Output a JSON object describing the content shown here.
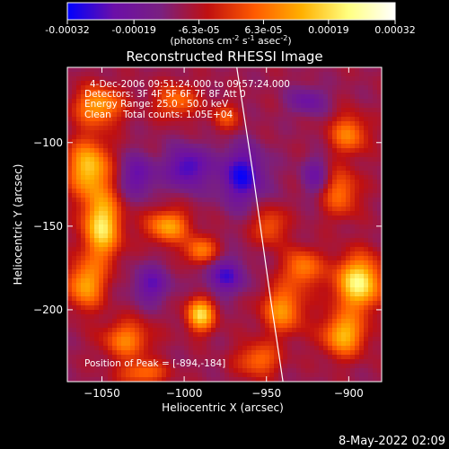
{
  "colorbar": {
    "tick_labels": [
      "-0.00032",
      "-0.00019",
      "-6.3e-05",
      "6.3e-05",
      "0.00019",
      "0.00032"
    ],
    "tick_values": [
      -0.00032,
      -0.00019,
      -6.3e-05,
      6.3e-05,
      0.00019,
      0.00032
    ],
    "range": [
      -0.00032,
      0.00032
    ],
    "unit_label": "(photons cm-2 s-1 asec-2)",
    "unit_base": "(photons cm",
    "unit_exp1": "-2",
    "unit_mid1": " s",
    "unit_exp2": "-1",
    "unit_mid2": " asec",
    "unit_exp3": "-2",
    "unit_end": ")",
    "colors": [
      "#0000ff",
      "#6b0fa8",
      "#7a2080",
      "#c01010",
      "#ff5a00",
      "#ffb000",
      "#ffff80",
      "#ffffff"
    ]
  },
  "chart_data": {
    "type": "heatmap",
    "title": "Reconstructed RHESSI Image",
    "xlabel": "Heliocentric X (arcsec)",
    "ylabel": "Heliocentric Y (arcsec)",
    "xlim": [
      -1071,
      -880
    ],
    "ylim": [
      -243,
      -55
    ],
    "x_ticks": [
      -1050,
      -1000,
      -950,
      -900
    ],
    "x_tick_labels": [
      "−1050",
      "−1000",
      "−950",
      "−900"
    ],
    "y_ticks": [
      -100,
      -150,
      -200
    ],
    "y_tick_labels": [
      "−100",
      "−150",
      "−200"
    ],
    "info_lines": [
      "4-Dec-2006 09:51:24.000 to 09:57:24.000",
      "Detectors: 3F 4F 5F 6F 7F 8F Att 0",
      "Energy Range: 25.0 - 50.0 keV",
      "Clean    Total counts: 1.05E+04"
    ],
    "peak_label": "Position of Peak = [-894,-184]",
    "peak_position": [
      -894,
      -184
    ],
    "limb_curve": {
      "x": [
        -968,
        -958,
        -948,
        -940
      ],
      "y": [
        -55,
        -120,
        -190,
        -243
      ]
    },
    "blobs": [
      {
        "x": -1052,
        "y": -78,
        "sx": 10,
        "sy": 8,
        "a": 0.00022
      },
      {
        "x": -1058,
        "y": -115,
        "sx": 9,
        "sy": 12,
        "a": 0.00026
      },
      {
        "x": -1050,
        "y": -150,
        "sx": 8,
        "sy": 14,
        "a": 0.0003
      },
      {
        "x": -1060,
        "y": -185,
        "sx": 8,
        "sy": 10,
        "a": 0.00022
      },
      {
        "x": -1035,
        "y": -218,
        "sx": 10,
        "sy": 8,
        "a": 0.00018
      },
      {
        "x": -1010,
        "y": -150,
        "sx": 9,
        "sy": 7,
        "a": 0.00022
      },
      {
        "x": -990,
        "y": -165,
        "sx": 7,
        "sy": 6,
        "a": 0.00018
      },
      {
        "x": -1005,
        "y": -75,
        "sx": 9,
        "sy": 7,
        "a": 0.00016
      },
      {
        "x": -975,
        "y": -85,
        "sx": 6,
        "sy": 6,
        "a": 0.00012
      },
      {
        "x": -990,
        "y": -203,
        "sx": 6,
        "sy": 7,
        "a": 0.00028
      },
      {
        "x": -940,
        "y": -200,
        "sx": 9,
        "sy": 10,
        "a": 0.0002
      },
      {
        "x": -955,
        "y": -230,
        "sx": 9,
        "sy": 7,
        "a": 0.00016
      },
      {
        "x": -948,
        "y": -150,
        "sx": 7,
        "sy": 8,
        "a": 0.00014
      },
      {
        "x": -900,
        "y": -95,
        "sx": 8,
        "sy": 8,
        "a": 0.00018
      },
      {
        "x": -905,
        "y": -130,
        "sx": 8,
        "sy": 10,
        "a": 0.00016
      },
      {
        "x": -894,
        "y": -184,
        "sx": 10,
        "sy": 11,
        "a": 0.00032
      },
      {
        "x": -903,
        "y": -215,
        "sx": 9,
        "sy": 9,
        "a": 0.00024
      },
      {
        "x": -928,
        "y": -175,
        "sx": 8,
        "sy": 8,
        "a": 0.00018
      },
      {
        "x": -1025,
        "y": -238,
        "sx": 10,
        "sy": 5,
        "a": 0.00016
      },
      {
        "x": -1028,
        "y": -120,
        "sx": 8,
        "sy": 9,
        "a": -0.00014
      },
      {
        "x": -998,
        "y": -115,
        "sx": 9,
        "sy": 9,
        "a": -0.00018
      },
      {
        "x": -965,
        "y": -120,
        "sx": 10,
        "sy": 12,
        "a": -0.0002
      },
      {
        "x": -975,
        "y": -180,
        "sx": 9,
        "sy": 8,
        "a": -0.00016
      },
      {
        "x": -1020,
        "y": -185,
        "sx": 8,
        "sy": 8,
        "a": -0.00014
      },
      {
        "x": -925,
        "y": -75,
        "sx": 8,
        "sy": 6,
        "a": -0.00012
      },
      {
        "x": -920,
        "y": -120,
        "sx": 6,
        "sy": 8,
        "a": -0.00012
      }
    ]
  },
  "timestamp": "8-May-2022 02:09"
}
